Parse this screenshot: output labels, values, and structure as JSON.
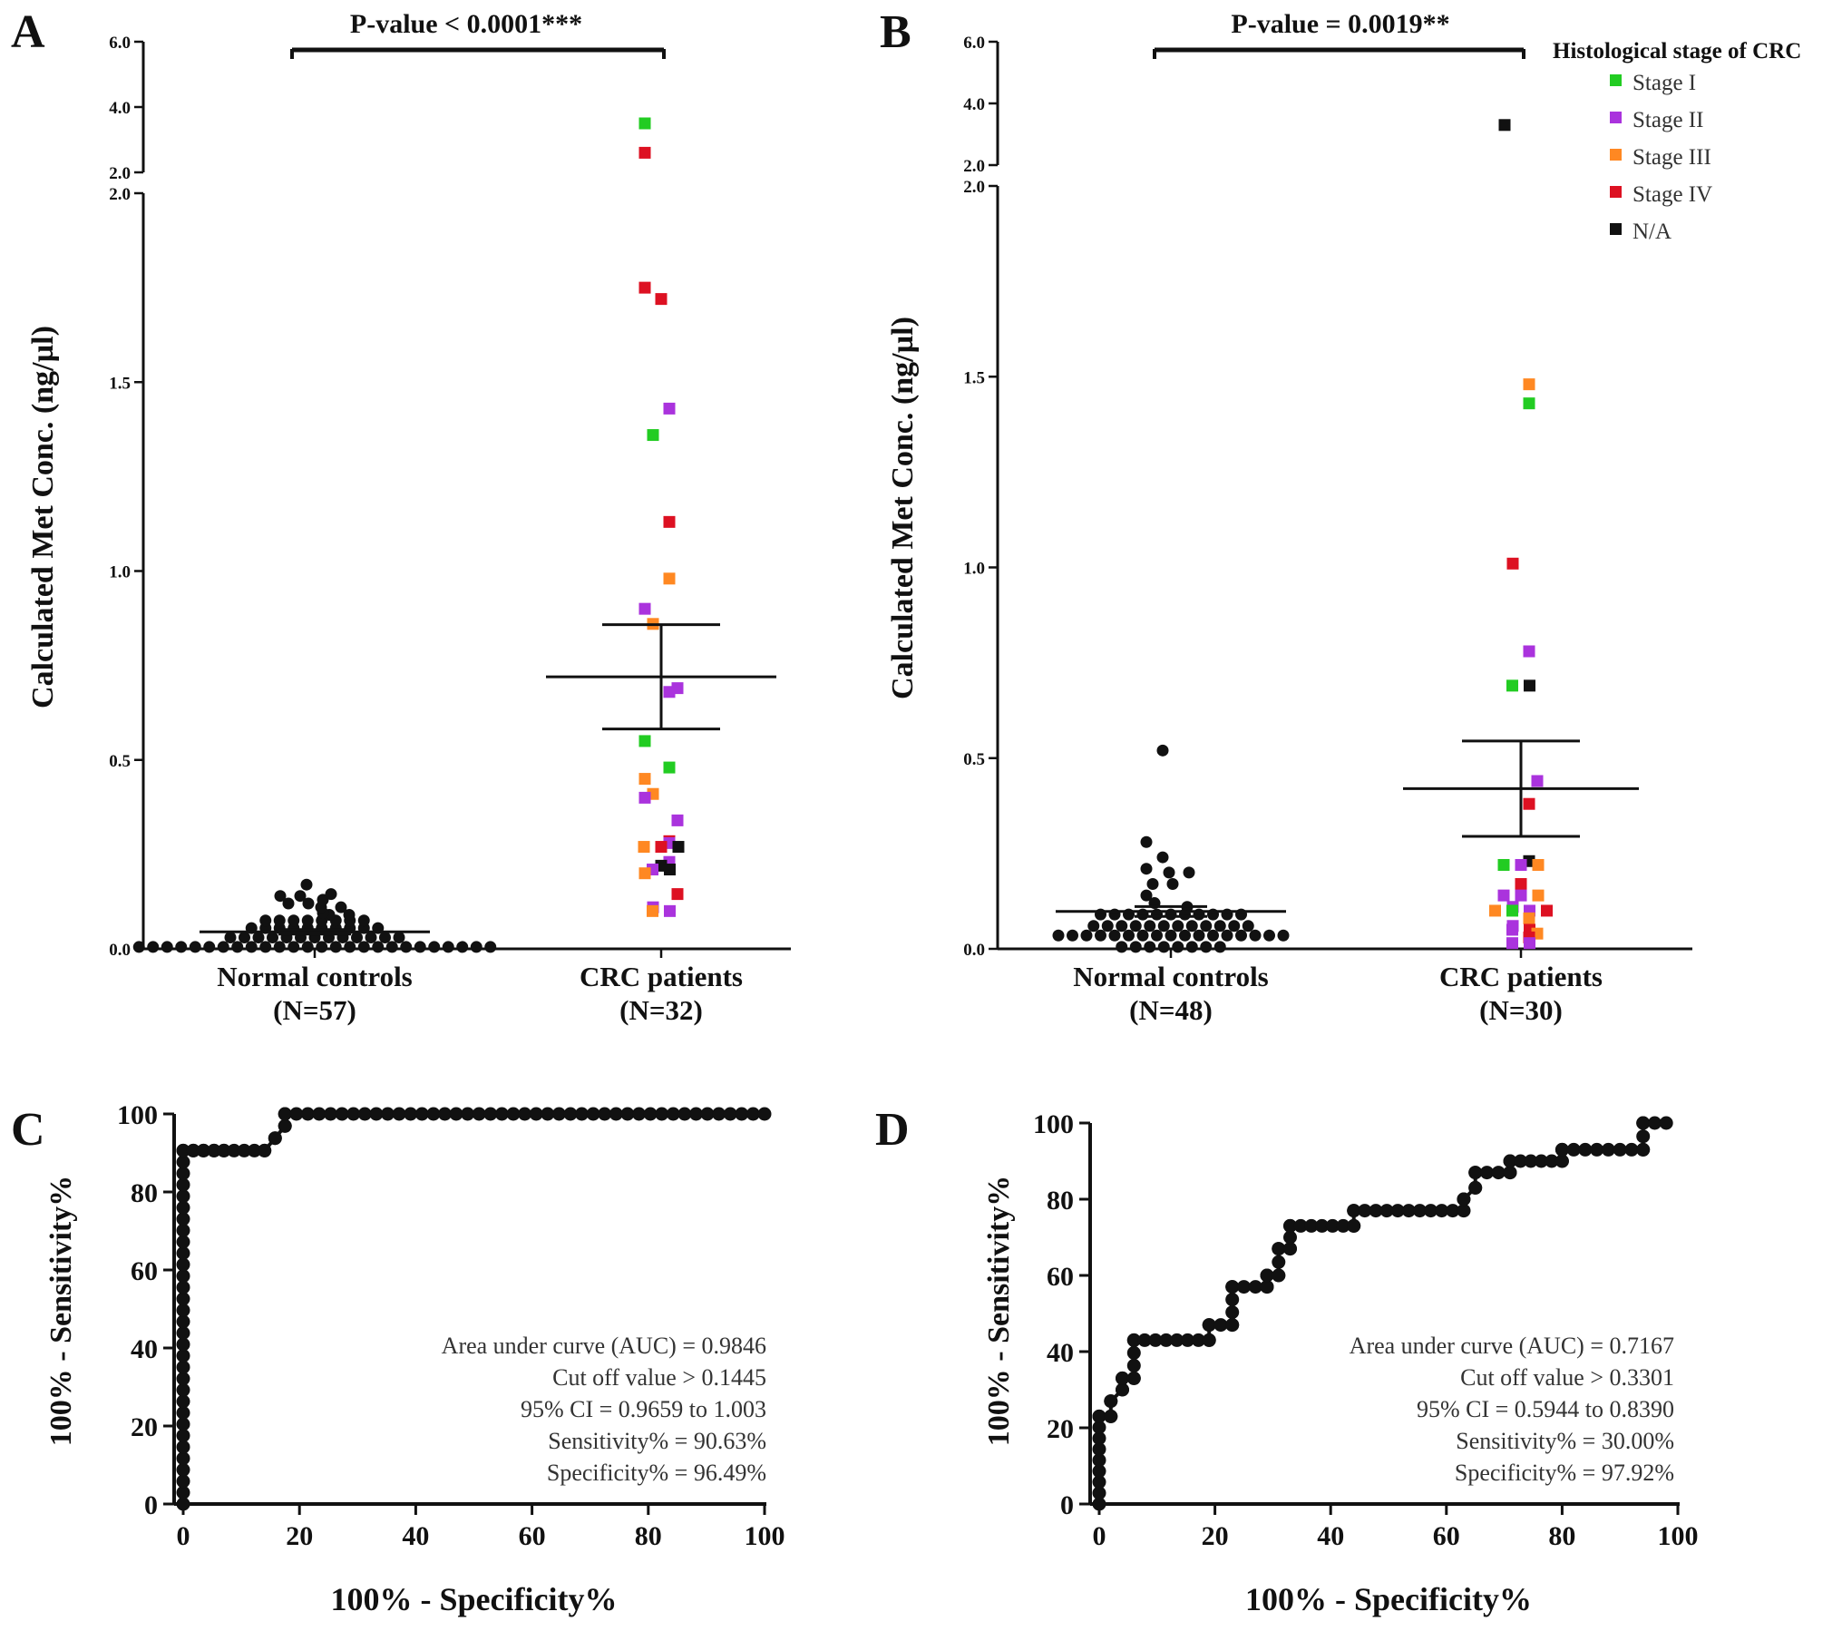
{
  "colors": {
    "axis": "#111111",
    "control_point": "#111111",
    "stage_I": "#22cc22",
    "stage_II": "#aa33dd",
    "stage_III": "#ff8822",
    "stage_IV": "#dd1122",
    "na": "#111111"
  },
  "legend": {
    "title": "Histological stage of CRC",
    "items": [
      {
        "label": "Stage I",
        "color": "#22cc22"
      },
      {
        "label": "Stage II",
        "color": "#aa33dd"
      },
      {
        "label": "Stage III",
        "color": "#ff8822"
      },
      {
        "label": "Stage IV",
        "color": "#dd1122"
      },
      {
        "label": "N/A",
        "color": "#111111"
      }
    ]
  },
  "chart_data": [
    {
      "panel": "A",
      "type": "scatter",
      "ylabel": "Calculated Met Conc. (ng/µl)",
      "pvalue_label": "P-value < 0.0001***",
      "ylim": [
        0,
        6.0
      ],
      "axis_break": [
        2.0,
        2.0
      ],
      "lower_ticks": [
        "0.0",
        "0.5",
        "1.0",
        "1.5",
        "2.0"
      ],
      "upper_ticks": [
        "2.0",
        "4.0",
        "6.0"
      ],
      "categories": [
        {
          "name": "Normal controls",
          "n_label": "(N=57)"
        },
        {
          "name": "CRC patients",
          "n_label": "(N=32)"
        }
      ],
      "control_mean": 0.045,
      "control_sem": 0.006,
      "control_values": [
        0.005,
        0.005,
        0.005,
        0.005,
        0.005,
        0.005,
        0.005,
        0.005,
        0.005,
        0.005,
        0.005,
        0.005,
        0.005,
        0.005,
        0.005,
        0.005,
        0.005,
        0.005,
        0.005,
        0.005,
        0.005,
        0.005,
        0.005,
        0.005,
        0.005,
        0.005,
        0.03,
        0.03,
        0.03,
        0.03,
        0.03,
        0.03,
        0.03,
        0.03,
        0.03,
        0.03,
        0.03,
        0.03,
        0.03,
        0.055,
        0.055,
        0.055,
        0.055,
        0.055,
        0.055,
        0.055,
        0.055,
        0.055,
        0.055,
        0.075,
        0.075,
        0.075,
        0.075,
        0.075,
        0.075,
        0.075,
        0.075
      ],
      "control_extra_values": [
        0.09,
        0.09,
        0.095,
        0.11,
        0.11,
        0.12,
        0.12,
        0.13,
        0.14,
        0.14,
        0.145,
        0.17
      ],
      "patient_mean": 0.72,
      "patient_sem": 0.138,
      "patient_points": [
        {
          "v": 3.5,
          "s": "I"
        },
        {
          "v": 2.6,
          "s": "IV"
        },
        {
          "v": 1.75,
          "s": "IV"
        },
        {
          "v": 1.72,
          "s": "IV"
        },
        {
          "v": 1.43,
          "s": "II"
        },
        {
          "v": 1.36,
          "s": "I"
        },
        {
          "v": 1.13,
          "s": "IV"
        },
        {
          "v": 0.98,
          "s": "III"
        },
        {
          "v": 0.9,
          "s": "II"
        },
        {
          "v": 0.86,
          "s": "III"
        },
        {
          "v": 0.69,
          "s": "II"
        },
        {
          "v": 0.68,
          "s": "II"
        },
        {
          "v": 0.55,
          "s": "I"
        },
        {
          "v": 0.48,
          "s": "I"
        },
        {
          "v": 0.45,
          "s": "III"
        },
        {
          "v": 0.41,
          "s": "III"
        },
        {
          "v": 0.4,
          "s": "II"
        },
        {
          "v": 0.34,
          "s": "II"
        },
        {
          "v": 0.285,
          "s": "IV"
        },
        {
          "v": 0.28,
          "s": "II"
        },
        {
          "v": 0.27,
          "s": "III"
        },
        {
          "v": 0.27,
          "s": "IV"
        },
        {
          "v": 0.27,
          "s": "NA"
        },
        {
          "v": 0.23,
          "s": "II"
        },
        {
          "v": 0.22,
          "s": "NA"
        },
        {
          "v": 0.21,
          "s": "II"
        },
        {
          "v": 0.21,
          "s": "NA"
        },
        {
          "v": 0.2,
          "s": "III"
        },
        {
          "v": 0.145,
          "s": "IV"
        },
        {
          "v": 0.11,
          "s": "II"
        },
        {
          "v": 0.1,
          "s": "III"
        },
        {
          "v": 0.1,
          "s": "II"
        }
      ]
    },
    {
      "panel": "B",
      "type": "scatter",
      "ylabel": "Calculated Met Conc. (ng/µl)",
      "pvalue_label": "P-value = 0.0019**",
      "ylim": [
        0,
        6.0
      ],
      "axis_break": [
        2.0,
        2.0
      ],
      "lower_ticks": [
        "0.0",
        "0.5",
        "1.0",
        "1.5",
        "2.0"
      ],
      "upper_ticks": [
        "2.0",
        "4.0",
        "6.0"
      ],
      "categories": [
        {
          "name": "Normal controls",
          "n_label": "(N=48)"
        },
        {
          "name": "CRC patients",
          "n_label": "(N=30)"
        }
      ],
      "control_mean": 0.098,
      "control_sem": 0.013,
      "control_values": [
        0.005,
        0.005,
        0.005,
        0.005,
        0.005,
        0.005,
        0.005,
        0.005,
        0.035,
        0.035,
        0.035,
        0.035,
        0.035,
        0.035,
        0.035,
        0.035,
        0.035,
        0.035,
        0.035,
        0.035,
        0.035,
        0.035,
        0.035,
        0.035,
        0.035,
        0.06,
        0.06,
        0.06,
        0.06,
        0.06,
        0.06,
        0.06,
        0.06,
        0.06,
        0.06,
        0.06,
        0.06,
        0.09,
        0.09,
        0.09,
        0.09,
        0.09,
        0.09,
        0.09,
        0.09,
        0.09,
        0.09,
        0.09
      ],
      "control_extra_values": [
        0.11,
        0.12,
        0.14,
        0.17,
        0.17,
        0.2,
        0.2,
        0.21,
        0.24,
        0.28,
        0.52
      ],
      "patient_mean": 0.42,
      "patient_sem": 0.125,
      "patient_points": [
        {
          "v": 3.3,
          "s": "NA"
        },
        {
          "v": 1.48,
          "s": "III"
        },
        {
          "v": 1.43,
          "s": "I"
        },
        {
          "v": 1.01,
          "s": "IV"
        },
        {
          "v": 0.78,
          "s": "II"
        },
        {
          "v": 0.69,
          "s": "I"
        },
        {
          "v": 0.69,
          "s": "NA"
        },
        {
          "v": 0.44,
          "s": "II"
        },
        {
          "v": 0.38,
          "s": "IV"
        },
        {
          "v": 0.23,
          "s": "NA"
        },
        {
          "v": 0.22,
          "s": "I"
        },
        {
          "v": 0.22,
          "s": "II"
        },
        {
          "v": 0.22,
          "s": "III"
        },
        {
          "v": 0.17,
          "s": "IV"
        },
        {
          "v": 0.14,
          "s": "II"
        },
        {
          "v": 0.14,
          "s": "II"
        },
        {
          "v": 0.14,
          "s": "III"
        },
        {
          "v": 0.11,
          "s": "II"
        },
        {
          "v": 0.1,
          "s": "III"
        },
        {
          "v": 0.1,
          "s": "I"
        },
        {
          "v": 0.1,
          "s": "II"
        },
        {
          "v": 0.1,
          "s": "IV"
        },
        {
          "v": 0.08,
          "s": "III"
        },
        {
          "v": 0.06,
          "s": "II"
        },
        {
          "v": 0.05,
          "s": "II"
        },
        {
          "v": 0.05,
          "s": "IV"
        },
        {
          "v": 0.04,
          "s": "III"
        },
        {
          "v": 0.03,
          "s": "IV"
        },
        {
          "v": 0.015,
          "s": "II"
        },
        {
          "v": 0.015,
          "s": "II"
        }
      ]
    },
    {
      "panel": "C",
      "type": "line",
      "xlabel": "100% - Specificity%",
      "ylabel": "100% - Sensitivity%",
      "xlim": [
        0,
        100
      ],
      "ylim": [
        0,
        100
      ],
      "xticks": [
        "0",
        "20",
        "40",
        "60",
        "80",
        "100"
      ],
      "yticks": [
        "0",
        "20",
        "40",
        "60",
        "80",
        "100"
      ],
      "stats": [
        "Area under curve (AUC) = 0.9846",
        "Cut  off value > 0.1445",
        "95% CI = 0.9659  to 1.003",
        "Sensitivity% = 90.63%",
        "Specificity% = 96.49%"
      ],
      "roc_points": [
        [
          0,
          0
        ],
        [
          0,
          90.6
        ],
        [
          1.75,
          90.6
        ],
        [
          3.5,
          90.6
        ],
        [
          5.3,
          90.6
        ],
        [
          7,
          90.6
        ],
        [
          14,
          90.6
        ],
        [
          15.8,
          93.8
        ],
        [
          17.5,
          96.9
        ],
        [
          17.5,
          100
        ],
        [
          100,
          100
        ]
      ]
    },
    {
      "panel": "D",
      "type": "line",
      "xlabel": "100% - Specificity%",
      "ylabel": "100% - Sensitivity%",
      "xlim": [
        0,
        100
      ],
      "ylim": [
        0,
        100
      ],
      "xticks": [
        "0",
        "20",
        "40",
        "60",
        "80",
        "100"
      ],
      "yticks": [
        "0",
        "20",
        "40",
        "60",
        "80",
        "100"
      ],
      "stats": [
        "Area under curve (AUC) = 0.7167",
        "Cut  off value > 0.3301",
        "95% CI = 0.5944  to 0.8390",
        "Sensitivity% = 30.00%",
        "Specificity% = 97.92%"
      ],
      "roc_points": [
        [
          0,
          0
        ],
        [
          0,
          23
        ],
        [
          2,
          23
        ],
        [
          2,
          27
        ],
        [
          4,
          30
        ],
        [
          4,
          33
        ],
        [
          6,
          33
        ],
        [
          6,
          43
        ],
        [
          19,
          43
        ],
        [
          19,
          47
        ],
        [
          23,
          47
        ],
        [
          23,
          57
        ],
        [
          29,
          57
        ],
        [
          29,
          60
        ],
        [
          31,
          60
        ],
        [
          31,
          67
        ],
        [
          33,
          67
        ],
        [
          33,
          73
        ],
        [
          44,
          73
        ],
        [
          44,
          77
        ],
        [
          63,
          77
        ],
        [
          63,
          80
        ],
        [
          65,
          83
        ],
        [
          65,
          87
        ],
        [
          71,
          87
        ],
        [
          71,
          90
        ],
        [
          80,
          90
        ],
        [
          80,
          93
        ],
        [
          94,
          93
        ],
        [
          94,
          100
        ],
        [
          98,
          100
        ]
      ]
    }
  ]
}
